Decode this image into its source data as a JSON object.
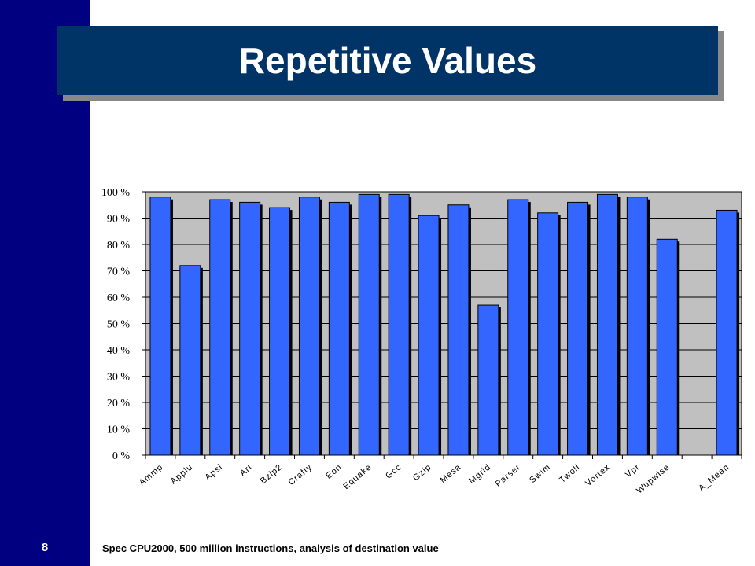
{
  "slide": {
    "number": "8",
    "title": "Repetitive Values",
    "footnote": "Spec CPU2000, 500 million instructions, analysis of destination value"
  },
  "colors": {
    "sidebar": "#000080",
    "title_bg": "#003366",
    "bar_fill": "#3366FF",
    "plot_bg": "#C0C0C0"
  },
  "chart_data": {
    "type": "bar",
    "title": "",
    "xlabel": "",
    "ylabel": "",
    "ylim": [
      0,
      100
    ],
    "y_ticks": [
      0,
      10,
      20,
      30,
      40,
      50,
      60,
      70,
      80,
      90,
      100
    ],
    "y_tick_labels": [
      "0 %",
      "10 %",
      "20 %",
      "30 %",
      "40 %",
      "50 %",
      "60 %",
      "70 %",
      "80 %",
      "90 %",
      "100 %"
    ],
    "grid": true,
    "categories": [
      "Ammp",
      "Applu",
      "Apsi",
      "Art",
      "Bzip2",
      "Crafty",
      "Eon",
      "Equake",
      "Gcc",
      "Gzip",
      "Mesa",
      "Mgrid",
      "Parser",
      "Swim",
      "Twolf",
      "Vortex",
      "Vpr",
      "Wupwise",
      "",
      "A_Mean"
    ],
    "values": [
      98,
      72,
      97,
      96,
      94,
      98,
      96,
      99,
      99,
      91,
      95,
      57,
      97,
      92,
      96,
      99,
      98,
      82,
      null,
      93
    ]
  }
}
